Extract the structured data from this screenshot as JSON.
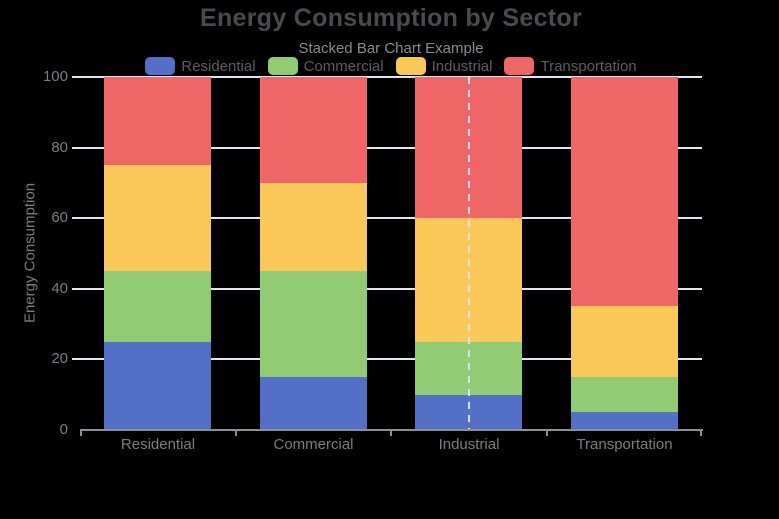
{
  "colors": {
    "background": "#000000",
    "gridline": "#E0E6F1",
    "axis_line": "#8E8E9A",
    "title_text": "#4A4A4F",
    "subtitle_text": "#8A8A93",
    "legend_text": "#5C5C63",
    "tick_text": "#7C7C85",
    "crosshair": "#DCE1EE"
  },
  "chart_data": {
    "type": "bar",
    "stacked": true,
    "title": "Energy Consumption by Sector",
    "subtitle": "Stacked Bar Chart Example",
    "categories": [
      "Residential",
      "Commercial",
      "Industrial",
      "Transportation"
    ],
    "series": [
      {
        "name": "Residential",
        "color": "#5470C6",
        "values": [
          25,
          15,
          10,
          5
        ]
      },
      {
        "name": "Commercial",
        "color": "#91CC75",
        "values": [
          20,
          30,
          15,
          10
        ]
      },
      {
        "name": "Industrial",
        "color": "#FAC858",
        "values": [
          30,
          25,
          35,
          20
        ]
      },
      {
        "name": "Transportation",
        "color": "#EE6666",
        "values": [
          25,
          30,
          40,
          65
        ]
      }
    ],
    "xlabel": "",
    "ylabel": "Energy Consumption",
    "ylim": [
      0,
      100
    ],
    "yticks": [
      0,
      20,
      40,
      60,
      80,
      100
    ],
    "legend_position": "top",
    "grid": true,
    "crosshair": {
      "category": "Industrial",
      "style": "dashed"
    }
  }
}
